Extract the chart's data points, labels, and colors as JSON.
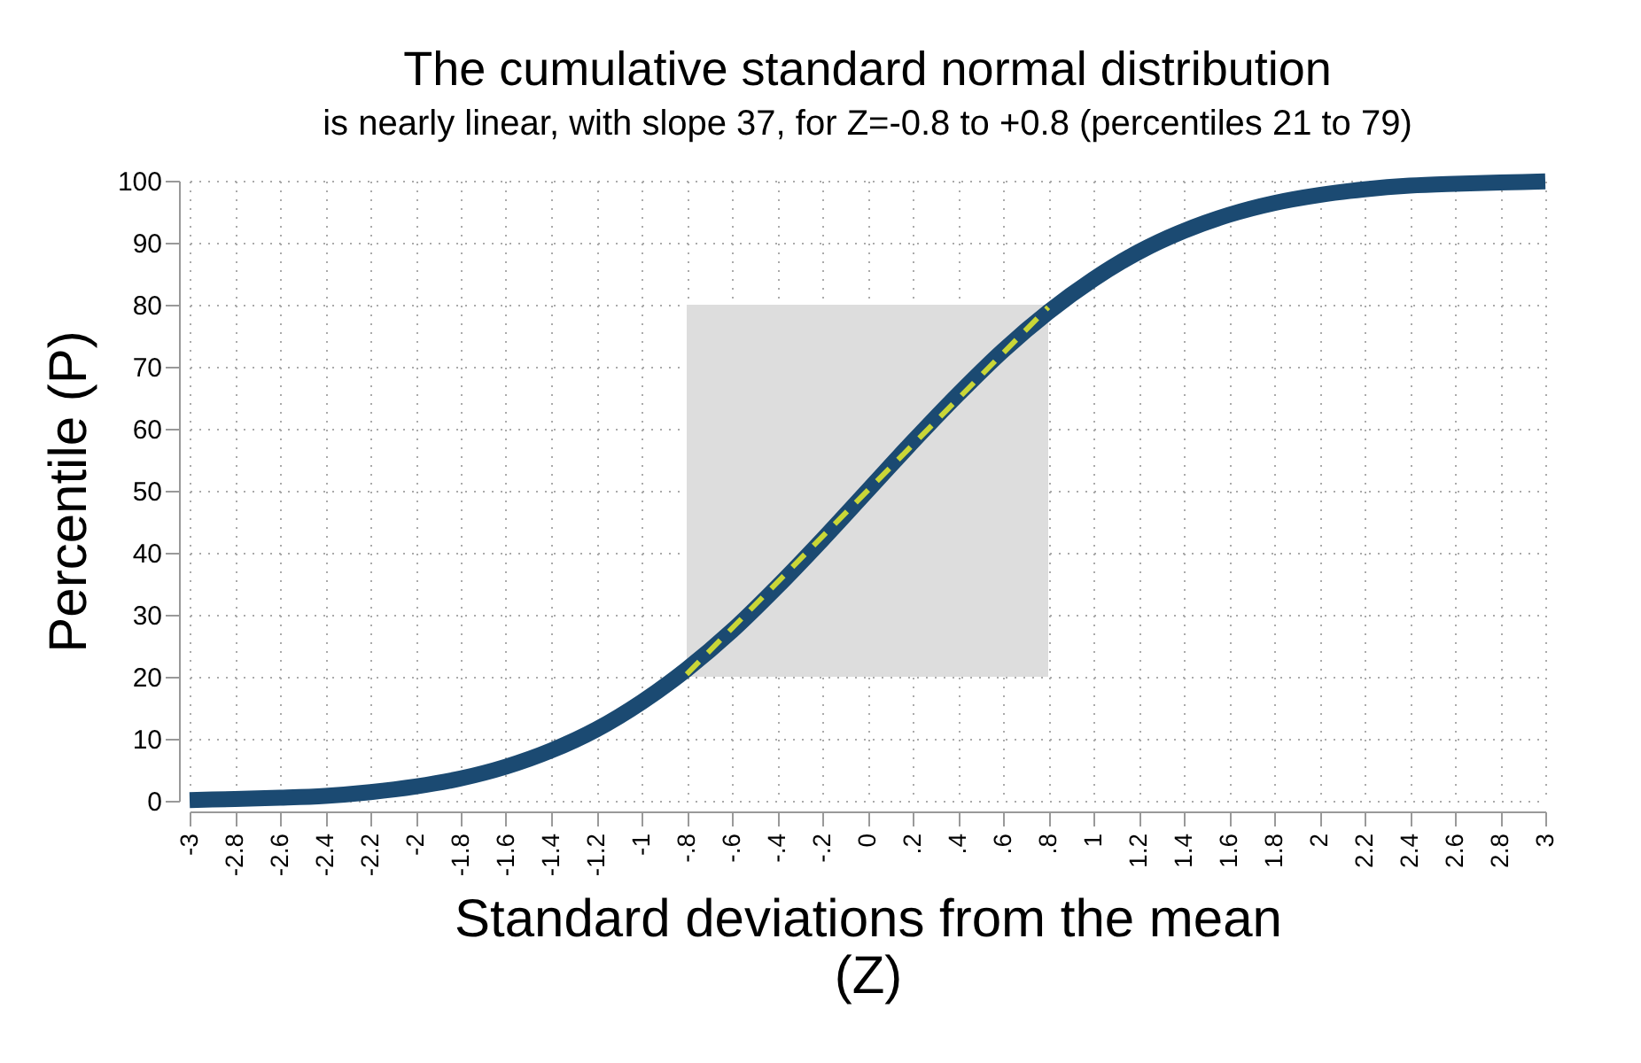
{
  "chart_data": {
    "type": "line",
    "title": "The cumulative standard normal distribution",
    "subtitle": "is nearly linear, with slope 37, for Z=-0.8 to +0.8 (percentiles 21 to 79)",
    "xlabel": "Standard deviations from the mean\n(Z)",
    "ylabel": "Percentile (P)",
    "xlim": [
      -3,
      3
    ],
    "xticks": [
      -3,
      {
        "value": -2.8,
        "label": "-2.8"
      },
      {
        "value": -2.6,
        "label": "-2.6"
      },
      {
        "value": -2.4,
        "label": "-2.4"
      },
      {
        "value": -2.2,
        "label": "-2.2"
      },
      -2,
      {
        "value": -1.8,
        "label": "-1.8"
      },
      {
        "value": -1.6,
        "label": "-1.6"
      },
      {
        "value": -1.4,
        "label": "-1.4"
      },
      {
        "value": -1.2,
        "label": "-1.2"
      },
      -1,
      {
        "value": -0.8,
        "label": "-.8"
      },
      {
        "value": -0.6,
        "label": "-.6"
      },
      {
        "value": -0.4,
        "label": "-.4"
      },
      {
        "value": -0.2,
        "label": "-.2"
      },
      0,
      {
        "value": 0.2,
        "label": ".2"
      },
      {
        "value": 0.4,
        "label": ".4"
      },
      {
        "value": 0.6,
        "label": ".6"
      },
      {
        "value": 0.8,
        "label": ".8"
      },
      1,
      1.2,
      1.4,
      1.6,
      1.8,
      2,
      2.2,
      2.4,
      2.6,
      2.8,
      3
    ],
    "ylim": [
      0,
      100
    ],
    "yticks": [
      0,
      10,
      20,
      30,
      40,
      50,
      60,
      70,
      80,
      90,
      100
    ],
    "grid": true,
    "series": [
      {
        "color": "#1b4a72",
        "x": [
          -3,
          -2.8,
          -2.6,
          -2.4,
          -2.2,
          -2,
          -1.8,
          -1.6,
          -1.4,
          -1.2,
          -1,
          -0.8,
          -0.6,
          -0.4,
          -0.2,
          0,
          0.2,
          0.4,
          0.6,
          0.8,
          1,
          1.2,
          1.4,
          1.6,
          1.8,
          2,
          2.2,
          2.4,
          2.6,
          2.8,
          3
        ],
        "values": [
          0.1,
          0.3,
          0.5,
          0.8,
          1.4,
          2.3,
          3.6,
          5.5,
          8.1,
          11.5,
          15.9,
          21.2,
          27.4,
          34.5,
          42.1,
          50,
          57.9,
          65.5,
          72.6,
          78.8,
          84.1,
          88.5,
          91.9,
          94.5,
          96.4,
          97.7,
          98.6,
          99.2,
          99.5,
          99.7,
          99.9
        ]
      },
      {
        "type": "line",
        "color": "#c9d637",
        "line_style": "dashed",
        "x": [
          -0.8,
          0.8
        ],
        "values": [
          20.4,
          79.6
        ],
        "lower": [
          20,
          20
        ],
        "upper": [
          80,
          80
        ]
      }
    ]
  }
}
